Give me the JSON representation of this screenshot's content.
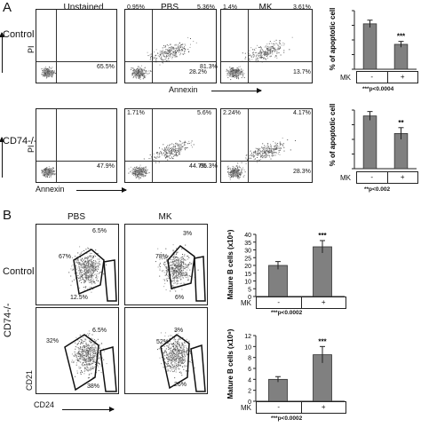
{
  "figure": {
    "panel_a_label": "A",
    "panel_b_label": "B",
    "col_unstained": "Unstained",
    "col_pbs": "PBS",
    "col_mk": "MK",
    "row_control": "Control",
    "row_cd74": "CD74-/-",
    "axis_pi": "PI",
    "axis_annexin": "Annexin",
    "axis_cd21": "CD21",
    "axis_cd24": "CD24"
  },
  "flow_a": {
    "control_unstained_q": "65.5%",
    "control_pbs_ul": "0.95%",
    "control_pbs_ur": "5.36%",
    "control_pbs_ll": "81.3%",
    "control_pbs_lr": "28.2%",
    "control_mk_ul": "1.4%",
    "control_mk_ur": "3.61%",
    "control_mk_lr": "13.7%",
    "cd74_unstained_q": "47.9%",
    "cd74_pbs_ul": "1.71%",
    "cd74_pbs_ur": "5.6%",
    "cd74_pbs_ll": "65.3%",
    "cd74_pbs_lr": "44.7%",
    "cd74_mk_ul": "2.24%",
    "cd74_mk_ur": "4.17%",
    "cd74_mk_lr": "28.3%"
  },
  "flow_b": {
    "control_pbs_top": "6.5%",
    "control_pbs_left": "67%",
    "control_pbs_bottom": "12.5%",
    "control_mk_top": "3%",
    "control_mk_left": "78%",
    "control_mk_bottom": "6%",
    "cd74_pbs_top": "6.5%",
    "cd74_pbs_left": "32%",
    "cd74_pbs_bottom": "38%",
    "cd74_mk_top": "3%",
    "cd74_mk_left": "52%",
    "cd74_mk_bottom": "26%"
  },
  "chart_data": [
    {
      "type": "bar",
      "categories": [
        "-",
        "+"
      ],
      "values": [
        31,
        17
      ],
      "errors": [
        2.5,
        2
      ],
      "ylabel": "% of apoptotic cell",
      "ylim": [
        0,
        40
      ],
      "yticks": [
        0,
        10,
        20,
        30,
        40
      ],
      "show_ytick_labels": false,
      "x_row_label": "MK",
      "stars": "***",
      "pvalue": "***p<0.0004",
      "bar_color": "#808080",
      "grid": false,
      "legend": "none"
    },
    {
      "type": "bar",
      "categories": [
        "-",
        "+"
      ],
      "values": [
        36,
        24
      ],
      "errors": [
        3,
        4
      ],
      "ylabel": "% of apoptotic cell",
      "ylim": [
        0,
        40
      ],
      "yticks": [
        0,
        10,
        20,
        30,
        40
      ],
      "show_ytick_labels": false,
      "x_row_label": "MK",
      "stars": "**",
      "pvalue": "**p<0.002",
      "bar_color": "#808080",
      "grid": false,
      "legend": "none"
    },
    {
      "type": "bar",
      "categories": [
        "-",
        "+"
      ],
      "values": [
        20,
        32
      ],
      "errors": [
        2.5,
        4
      ],
      "ylabel": "Mature B cells (x10⁶)",
      "ylim": [
        0,
        40
      ],
      "yticks": [
        0,
        5,
        10,
        15,
        20,
        25,
        30,
        35,
        40
      ],
      "show_ytick_labels": true,
      "x_row_label": "MK",
      "stars": "***",
      "pvalue": "***p<0.0002",
      "bar_color": "#808080",
      "grid": false,
      "legend": "none"
    },
    {
      "type": "bar",
      "categories": [
        "-",
        "+"
      ],
      "values": [
        4,
        8.5
      ],
      "errors": [
        0.5,
        1.5
      ],
      "ylabel": "Mature B cells (x10⁶)",
      "ylim": [
        0,
        12
      ],
      "yticks": [
        0,
        2,
        4,
        6,
        8,
        10,
        12
      ],
      "show_ytick_labels": true,
      "x_row_label": "MK",
      "stars": "***",
      "pvalue": "***p<0.0002",
      "bar_color": "#808080",
      "grid": false,
      "legend": "none"
    }
  ]
}
